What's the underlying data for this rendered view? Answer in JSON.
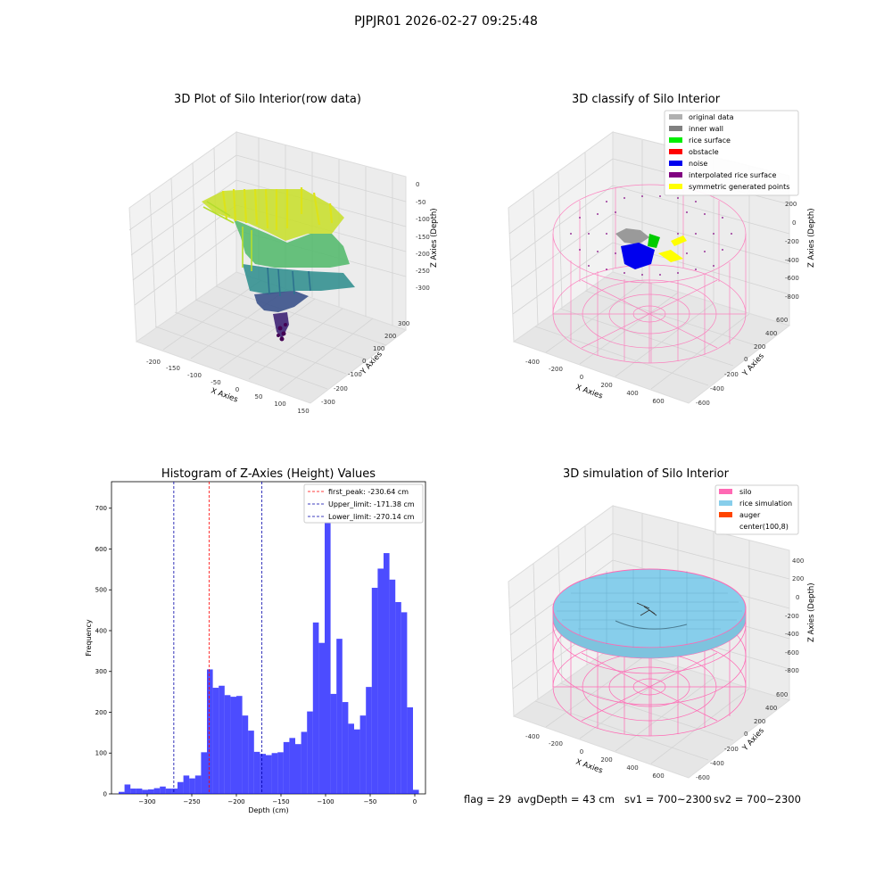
{
  "suptitle": "PJPJR01 2026-02-27 09:25:48",
  "panels": {
    "raw": {
      "title": "3D Plot of Silo Interior(row data)",
      "x_label": "X Axies",
      "y_label": "Y Axies",
      "z_label": "Z Axies (Depth)",
      "x_ticks": [
        "-200",
        "-150",
        "-100",
        "-50",
        "0",
        "50",
        "100",
        "150"
      ],
      "y_ticks": [
        "-300",
        "-200",
        "-100",
        "0",
        "100",
        "200",
        "300"
      ],
      "z_ticks": [
        "0",
        "-50",
        "-100",
        "-150",
        "-200",
        "-250",
        "-300"
      ]
    },
    "classify": {
      "title": "3D classify of Silo Interior",
      "x_label": "X Axies",
      "y_label": "Y Axies",
      "z_label": "Z Axies (Depth)",
      "x_ticks": [
        "-400",
        "-200",
        "0",
        "200",
        "400",
        "600"
      ],
      "y_ticks": [
        "-600",
        "-400",
        "-200",
        "0",
        "200",
        "400",
        "600"
      ],
      "z_ticks": [
        "200",
        "0",
        "-200",
        "-400",
        "-600",
        "-800"
      ],
      "legend": [
        {
          "label": "original data",
          "color": "#b0b0b0"
        },
        {
          "label": "inner wall",
          "color": "#808080"
        },
        {
          "label": "rice surface",
          "color": "#00ee00"
        },
        {
          "label": "obstacle",
          "color": "#ff0000"
        },
        {
          "label": "noise",
          "color": "#0000ee"
        },
        {
          "label": "interpolated rice surface",
          "color": "#800080"
        },
        {
          "label": "symmetric generated points",
          "color": "#ffff00"
        }
      ]
    },
    "simulation": {
      "title": "3D simulation of Silo Interior",
      "x_label": "X Axies",
      "y_label": "Y Axies",
      "z_label": "Z Axies (Depth)",
      "x_ticks": [
        "-400",
        "-200",
        "0",
        "200",
        "400",
        "600"
      ],
      "y_ticks": [
        "-600",
        "-400",
        "-200",
        "0",
        "200",
        "400",
        "600"
      ],
      "z_ticks": [
        "400",
        "200",
        "0",
        "-200",
        "-400",
        "-600",
        "-800"
      ],
      "legend": [
        {
          "label": "silo",
          "color": "#ff69b4"
        },
        {
          "label": "rice simulation",
          "color": "#87ceeb"
        },
        {
          "label": "auger",
          "color": "#ff4500"
        },
        {
          "label": "center(100,8)",
          "color": ""
        }
      ]
    }
  },
  "chart_data": {
    "type": "bar",
    "title": "Histogram of Z-Axies (Height) Values",
    "xlabel": "Depth (cm)",
    "ylabel": "Frequency",
    "xlim": [
      -340,
      12
    ],
    "ylim": [
      0,
      765
    ],
    "x_ticks": [
      -300,
      -250,
      -200,
      -150,
      -100,
      -50,
      0
    ],
    "y_ticks": [
      0,
      100,
      200,
      300,
      400,
      500,
      600,
      700
    ],
    "bin_start": -332,
    "bin_width": 6.6,
    "values": [
      5,
      23,
      13,
      13,
      10,
      11,
      14,
      18,
      13,
      13,
      29,
      45,
      38,
      45,
      102,
      305,
      260,
      265,
      242,
      238,
      240,
      192,
      155,
      103,
      98,
      95,
      100,
      102,
      127,
      137,
      122,
      152,
      202,
      420,
      370,
      730,
      245,
      380,
      225,
      172,
      158,
      192,
      262,
      505,
      552,
      590,
      525,
      470,
      445,
      212,
      10
    ],
    "bar_color": "#0000ff",
    "vlines": [
      {
        "label": "first_peak: -230.64 cm",
        "x": -230.64,
        "color": "#ff0000"
      },
      {
        "label": "Upper_limit: -171.38 cm",
        "x": -171.38,
        "color": "#0000aa"
      },
      {
        "label": "Lower_limit: -270.14 cm",
        "x": -270.14,
        "color": "#0000aa"
      }
    ],
    "legend_position": "top-right"
  },
  "status": {
    "flag": "flag = 29",
    "avg_depth": "avgDepth = 43 cm",
    "sv1": "sv1 = 700~2300",
    "sv2": "sv2 = 700~2300"
  }
}
